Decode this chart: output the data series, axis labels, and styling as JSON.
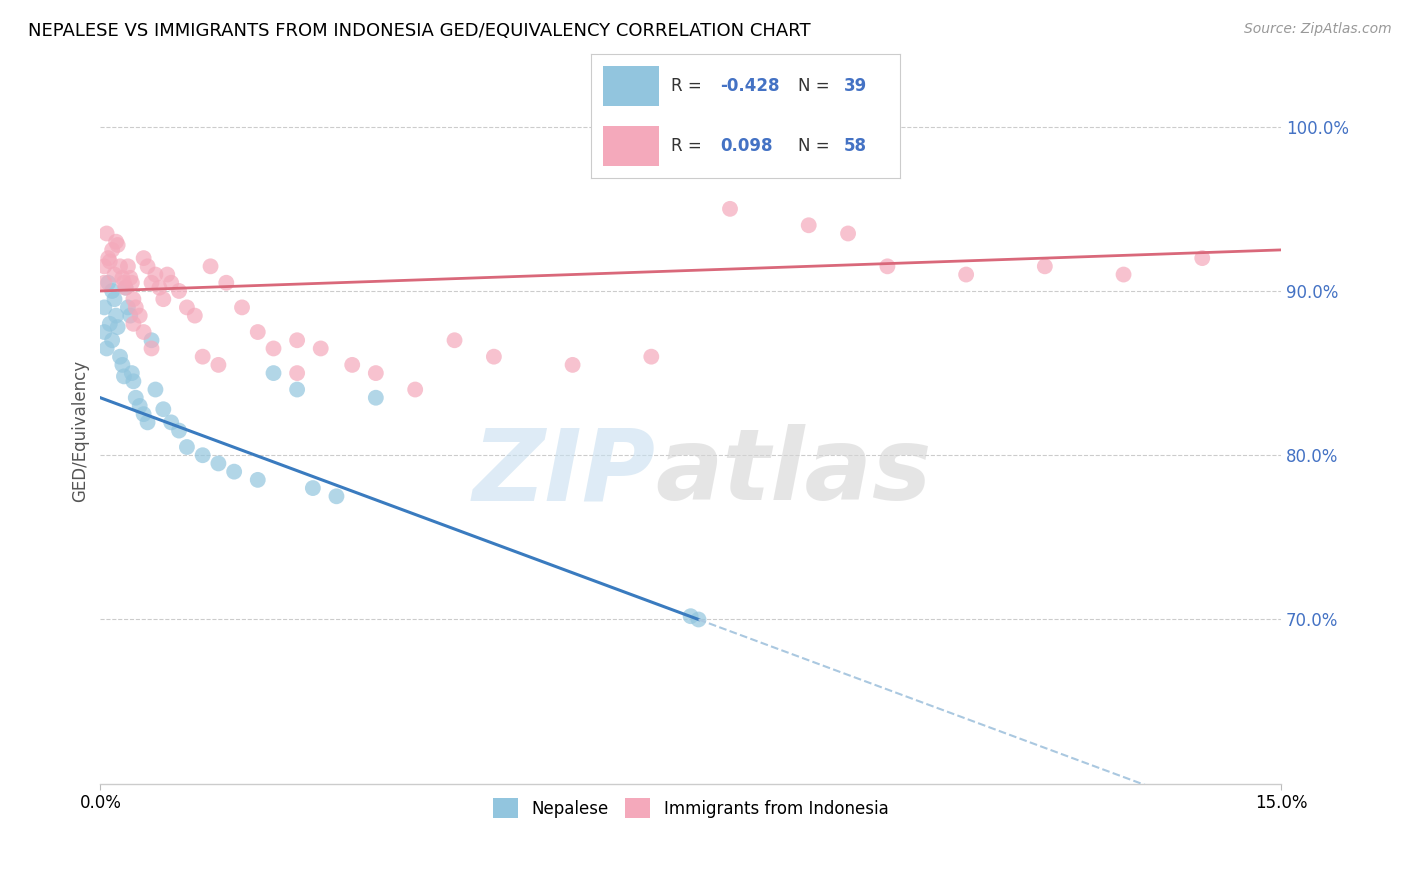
{
  "title": "NEPALESE VS IMMIGRANTS FROM INDONESIA GED/EQUIVALENCY CORRELATION CHART",
  "source": "Source: ZipAtlas.com",
  "ylabel": "GED/Equivalency",
  "yticks": [
    100.0,
    90.0,
    80.0,
    70.0
  ],
  "ytick_labels": [
    "100.0%",
    "90.0%",
    "80.0%",
    "70.0%"
  ],
  "xmin": 0.0,
  "xmax": 15.0,
  "ymin": 60.0,
  "ymax": 103.0,
  "color_blue": "#92c5de",
  "color_pink": "#f4a9bb",
  "color_trendline_blue": "#3a7bbf",
  "color_trendline_pink": "#d9687a",
  "color_trendline_dash": "#aac8e0",
  "nepalese_x": [
    0.05,
    0.05,
    0.08,
    0.1,
    0.12,
    0.15,
    0.15,
    0.18,
    0.2,
    0.22,
    0.25,
    0.28,
    0.3,
    0.32,
    0.35,
    0.38,
    0.4,
    0.42,
    0.45,
    0.5,
    0.55,
    0.6,
    0.65,
    0.7,
    0.8,
    0.9,
    1.0,
    1.1,
    1.3,
    1.5,
    1.7,
    2.0,
    2.2,
    2.5,
    2.7,
    3.0,
    3.5,
    7.5,
    7.6
  ],
  "nepalese_y": [
    89.0,
    87.5,
    86.5,
    90.5,
    88.0,
    90.0,
    87.0,
    89.5,
    88.5,
    87.8,
    86.0,
    85.5,
    84.8,
    90.2,
    89.0,
    88.5,
    85.0,
    84.5,
    83.5,
    83.0,
    82.5,
    82.0,
    87.0,
    84.0,
    82.8,
    82.0,
    81.5,
    80.5,
    80.0,
    79.5,
    79.0,
    78.5,
    85.0,
    84.0,
    78.0,
    77.5,
    83.5,
    70.2,
    70.0
  ],
  "indonesia_x": [
    0.05,
    0.05,
    0.08,
    0.1,
    0.12,
    0.15,
    0.18,
    0.2,
    0.22,
    0.25,
    0.28,
    0.3,
    0.32,
    0.35,
    0.38,
    0.4,
    0.42,
    0.45,
    0.5,
    0.55,
    0.6,
    0.65,
    0.7,
    0.75,
    0.8,
    0.85,
    0.9,
    1.0,
    1.1,
    1.2,
    1.4,
    1.6,
    1.8,
    2.0,
    2.2,
    2.5,
    2.8,
    3.2,
    3.5,
    4.0,
    4.5,
    5.0,
    6.0,
    7.0,
    8.0,
    9.0,
    9.5,
    10.0,
    11.0,
    12.0,
    13.0,
    14.0,
    1.3,
    1.5,
    0.42,
    0.55,
    0.65,
    2.5
  ],
  "indonesia_y": [
    91.5,
    90.5,
    93.5,
    92.0,
    91.8,
    92.5,
    91.0,
    93.0,
    92.8,
    91.5,
    90.8,
    90.5,
    90.2,
    91.5,
    90.8,
    90.5,
    89.5,
    89.0,
    88.5,
    92.0,
    91.5,
    90.5,
    91.0,
    90.2,
    89.5,
    91.0,
    90.5,
    90.0,
    89.0,
    88.5,
    91.5,
    90.5,
    89.0,
    87.5,
    86.5,
    87.0,
    86.5,
    85.5,
    85.0,
    84.0,
    87.0,
    86.0,
    85.5,
    86.0,
    95.0,
    94.0,
    93.5,
    91.5,
    91.0,
    91.5,
    91.0,
    92.0,
    86.0,
    85.5,
    88.0,
    87.5,
    86.5,
    85.0
  ],
  "nep_trendline_x0": 0.0,
  "nep_trendline_y0": 83.5,
  "nep_trendline_x1": 7.6,
  "nep_trendline_y1": 70.0,
  "nep_dash_x0": 7.6,
  "nep_dash_x1": 15.0,
  "ind_trendline_x0": 0.0,
  "ind_trendline_y0": 90.0,
  "ind_trendline_x1": 15.0,
  "ind_trendline_y1": 92.5
}
